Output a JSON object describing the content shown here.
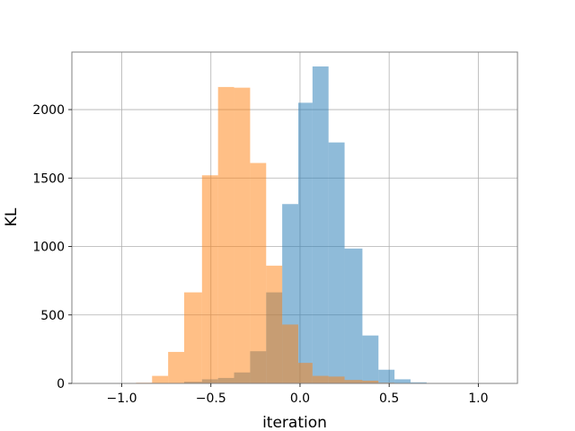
{
  "chart_data": {
    "type": "bar",
    "subtype": "overlapping-histogram",
    "xlabel": "iteration",
    "ylabel": "KL",
    "xlim": [
      -1.28,
      1.22
    ],
    "ylim": [
      0,
      2420
    ],
    "xticks": [
      -1.0,
      -0.5,
      0.0,
      0.5,
      1.0
    ],
    "xtick_labels": [
      "−1.0",
      "−0.5",
      "0.0",
      "0.5",
      "1.0"
    ],
    "yticks": [
      0,
      500,
      1000,
      1500,
      2000
    ],
    "ytick_labels": [
      "0",
      "500",
      "1000",
      "1500",
      "2000"
    ],
    "grid": true,
    "legend": "none",
    "series": [
      {
        "color": "#1f77b4",
        "opacity": 0.5,
        "bins": [
          {
            "x0": -0.92,
            "x1": -0.83,
            "count": 0
          },
          {
            "x0": -0.83,
            "x1": -0.74,
            "count": 0
          },
          {
            "x0": -0.74,
            "x1": -0.65,
            "count": 3
          },
          {
            "x0": -0.65,
            "x1": -0.55,
            "count": 12
          },
          {
            "x0": -0.55,
            "x1": -0.46,
            "count": 30
          },
          {
            "x0": -0.46,
            "x1": -0.37,
            "count": 40
          },
          {
            "x0": -0.37,
            "x1": -0.28,
            "count": 80
          },
          {
            "x0": -0.28,
            "x1": -0.19,
            "count": 235
          },
          {
            "x0": -0.19,
            "x1": -0.1,
            "count": 665
          },
          {
            "x0": -0.1,
            "x1": -0.01,
            "count": 1310
          },
          {
            "x0": -0.01,
            "x1": 0.07,
            "count": 2050
          },
          {
            "x0": 0.07,
            "x1": 0.16,
            "count": 2315
          },
          {
            "x0": 0.16,
            "x1": 0.25,
            "count": 1760
          },
          {
            "x0": 0.25,
            "x1": 0.35,
            "count": 985
          },
          {
            "x0": 0.35,
            "x1": 0.44,
            "count": 350
          },
          {
            "x0": 0.44,
            "x1": 0.53,
            "count": 100
          },
          {
            "x0": 0.53,
            "x1": 0.62,
            "count": 30
          },
          {
            "x0": 0.62,
            "x1": 0.71,
            "count": 8
          }
        ]
      },
      {
        "color": "#ff7f0e",
        "opacity": 0.5,
        "bins": [
          {
            "x0": -0.92,
            "x1": -0.83,
            "count": 5
          },
          {
            "x0": -0.83,
            "x1": -0.74,
            "count": 55
          },
          {
            "x0": -0.74,
            "x1": -0.65,
            "count": 230
          },
          {
            "x0": -0.65,
            "x1": -0.55,
            "count": 665
          },
          {
            "x0": -0.55,
            "x1": -0.46,
            "count": 1520
          },
          {
            "x0": -0.46,
            "x1": -0.37,
            "count": 2165
          },
          {
            "x0": -0.37,
            "x1": -0.28,
            "count": 2160
          },
          {
            "x0": -0.28,
            "x1": -0.19,
            "count": 1610
          },
          {
            "x0": -0.19,
            "x1": -0.1,
            "count": 860
          },
          {
            "x0": -0.1,
            "x1": -0.01,
            "count": 430
          },
          {
            "x0": -0.01,
            "x1": 0.07,
            "count": 150
          },
          {
            "x0": 0.07,
            "x1": 0.16,
            "count": 55
          },
          {
            "x0": 0.16,
            "x1": 0.25,
            "count": 50
          },
          {
            "x0": 0.25,
            "x1": 0.35,
            "count": 25
          },
          {
            "x0": 0.35,
            "x1": 0.44,
            "count": 20
          },
          {
            "x0": 0.44,
            "x1": 0.53,
            "count": 5
          },
          {
            "x0": 0.53,
            "x1": 0.62,
            "count": 0
          },
          {
            "x0": 0.62,
            "x1": 0.71,
            "count": 0
          }
        ]
      }
    ]
  }
}
